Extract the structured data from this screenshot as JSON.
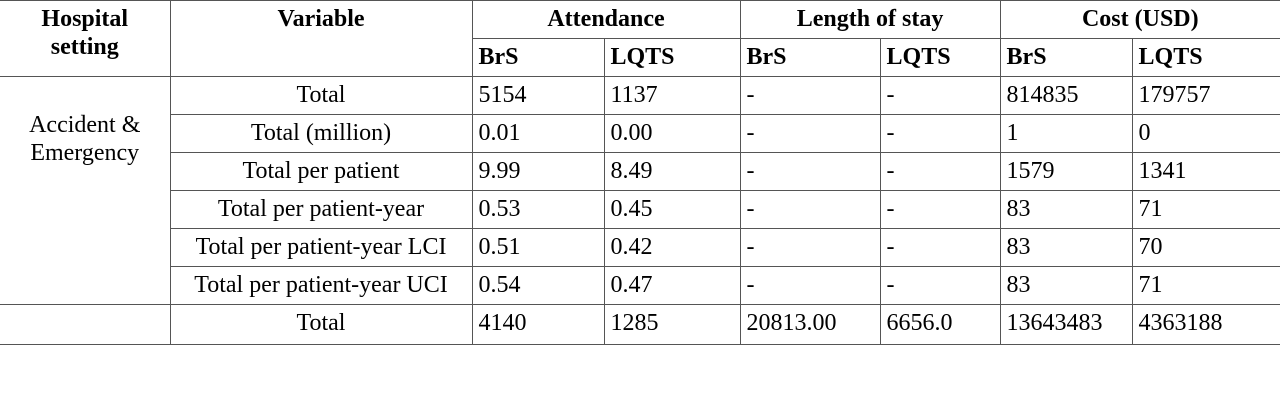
{
  "table": {
    "header_row_1": [
      "Hospital setting",
      "Variable",
      "Attendance",
      "Length of stay",
      "Cost (USD)"
    ],
    "header_row_2": [
      "BrS",
      "LQTS",
      "BrS",
      "LQTS",
      "BrS",
      "LQTS"
    ],
    "groups": [
      {
        "setting": "Accident & Emergency",
        "rows": [
          [
            "Total",
            "5154",
            "1137",
            "-",
            "-",
            "814835",
            "179757"
          ],
          [
            "Total (million)",
            "0.01",
            "0.00",
            "-",
            "-",
            "1",
            "0"
          ],
          [
            "Total per patient",
            "9.99",
            "8.49",
            "-",
            "-",
            "1579",
            "1341"
          ],
          [
            "Total per patient-year",
            "0.53",
            "0.45",
            "-",
            "-",
            "83",
            "71"
          ],
          [
            "Total per patient-year LCI",
            "0.51",
            "0.42",
            "-",
            "-",
            "83",
            "70"
          ],
          [
            "Total per patient-year UCI",
            "0.54",
            "0.47",
            "-",
            "-",
            "83",
            "71"
          ]
        ]
      },
      {
        "rows": [
          [
            "Total",
            "4140",
            "1285",
            "20813.00",
            "6656.0",
            "13643483",
            "4363188"
          ]
        ]
      }
    ]
  }
}
